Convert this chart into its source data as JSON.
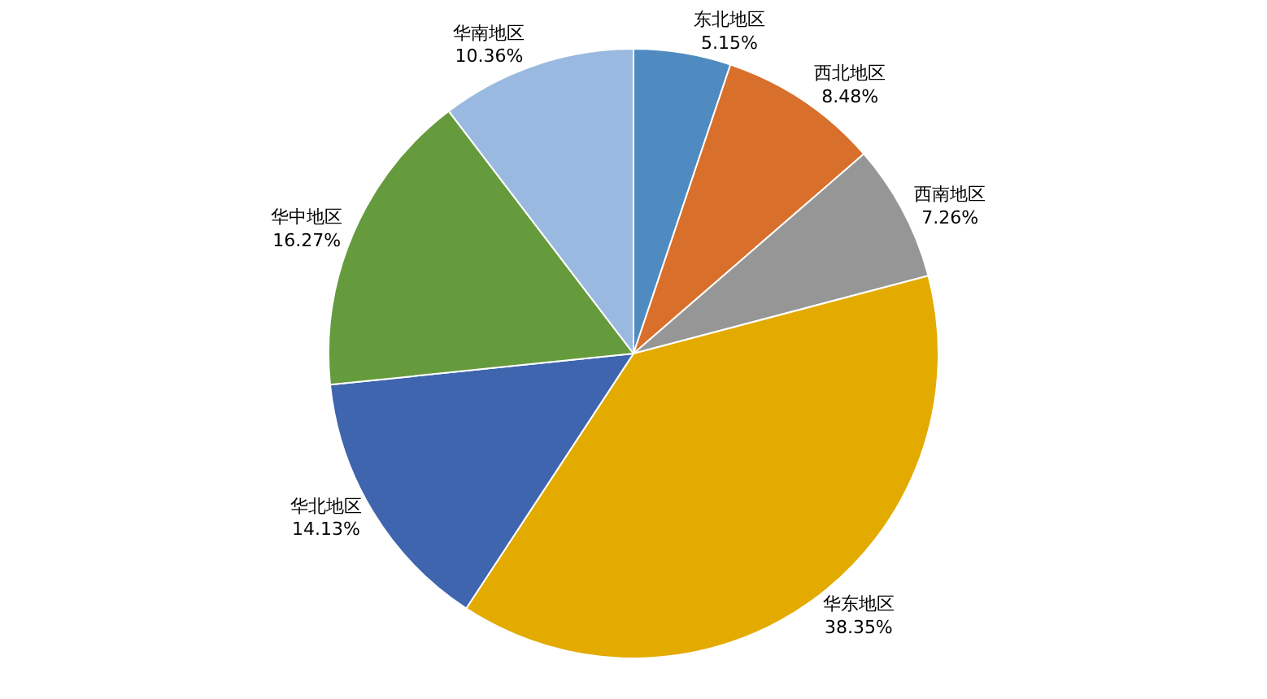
{
  "chart_data": {
    "type": "pie",
    "categories": [
      "东北地区",
      "西北地区",
      "西南地区",
      "华东地区",
      "华北地区",
      "华中地区",
      "华南地区"
    ],
    "values": [
      5.15,
      8.48,
      7.26,
      38.35,
      14.13,
      16.27,
      10.36
    ],
    "value_labels": [
      "5.15%",
      "8.48%",
      "7.26%",
      "38.35%",
      "14.13%",
      "16.27%",
      "10.36%"
    ],
    "colors": [
      "#4f8bc1",
      "#d86f2b",
      "#969696",
      "#e3aa00",
      "#3e65ae",
      "#659b3d",
      "#9ab9e0"
    ],
    "legend": false
  }
}
